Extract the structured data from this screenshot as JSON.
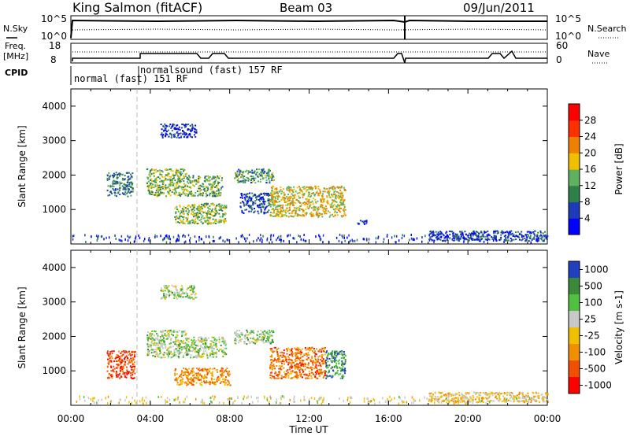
{
  "header": {
    "title": "King Salmon (fitACF)",
    "beam": "Beam 03",
    "date": "09/Jun/2011"
  },
  "panels": {
    "noise": {
      "left_label": "N.Sky",
      "right_label": "N.Search",
      "left_ticks": [
        "10^5",
        "10^0"
      ],
      "right_ticks": [
        "10^5",
        "10^0"
      ]
    },
    "freq": {
      "left_label_1": "Freq.",
      "left_label_2": "[MHz]",
      "right_label": "Nave",
      "left_ticks": [
        "18",
        "8"
      ],
      "right_ticks": [
        "60",
        "0"
      ]
    },
    "cpid": {
      "label": "CPID",
      "segments": [
        {
          "text": "normal (fast) 151 RF"
        },
        {
          "text": "normalsound (fast) 157 RF"
        }
      ]
    }
  },
  "chart_data": [
    {
      "type": "heatmap",
      "title": "",
      "ylabel": "Slant Range [km]",
      "xlabel": "",
      "x_ticks": [
        "00:00",
        "04:00",
        "08:00",
        "12:00",
        "16:00",
        "20:00",
        "00:00"
      ],
      "y_ticks": [
        "1000",
        "2000",
        "3000",
        "4000"
      ],
      "ylim": [
        0,
        4500
      ],
      "xlim_hours": [
        0,
        24
      ],
      "colorbar": {
        "label": "Power [dB]",
        "ticks": [
          "4",
          "8",
          "12",
          "16",
          "20",
          "24",
          "28"
        ],
        "colors": [
          "#0000ff",
          "#1d3bb8",
          "#2f7f4a",
          "#5fb05f",
          "#f0c000",
          "#f08000",
          "#ff3000",
          "#ff0000"
        ]
      },
      "regions": [
        {
          "t0": 1.8,
          "t1": 3.1,
          "r0": 1400,
          "r1": 2100,
          "level": 0.3
        },
        {
          "t0": 3.8,
          "t1": 5.8,
          "r0": 1400,
          "r1": 2200,
          "level": 0.45
        },
        {
          "t0": 4.5,
          "t1": 6.3,
          "r0": 3100,
          "r1": 3500,
          "level": 0.15
        },
        {
          "t0": 5.8,
          "t1": 7.6,
          "r0": 1400,
          "r1": 2000,
          "level": 0.4
        },
        {
          "t0": 5.2,
          "t1": 7.8,
          "r0": 600,
          "r1": 1200,
          "level": 0.45
        },
        {
          "t0": 8.2,
          "t1": 10.2,
          "r0": 1800,
          "r1": 2200,
          "level": 0.35
        },
        {
          "t0": 8.5,
          "t1": 10.0,
          "r0": 900,
          "r1": 1500,
          "level": 0.2
        },
        {
          "t0": 10.0,
          "t1": 13.8,
          "r0": 800,
          "r1": 1700,
          "level": 0.55
        },
        {
          "t0": 14.3,
          "t1": 14.9,
          "r0": 550,
          "r1": 700,
          "level": 0.2
        },
        {
          "t0": 18.0,
          "t1": 24.0,
          "r0": 100,
          "r1": 400,
          "level": 0.2
        }
      ]
    },
    {
      "type": "heatmap",
      "title": "",
      "ylabel": "Slant Range [km]",
      "xlabel": "Time UT",
      "x_ticks": [
        "00:00",
        "04:00",
        "08:00",
        "12:00",
        "16:00",
        "20:00",
        "00:00"
      ],
      "y_ticks": [
        "1000",
        "2000",
        "3000",
        "4000"
      ],
      "ylim": [
        0,
        4500
      ],
      "xlim_hours": [
        0,
        24
      ],
      "colorbar": {
        "label": "Velocity [m s-1]",
        "ticks": [
          "1000",
          "500",
          "100",
          "25",
          "-25",
          "-100",
          "-500",
          "-1000"
        ],
        "colors": [
          "#2040c0",
          "#3a8a3a",
          "#50c040",
          "#c8c8c8",
          "#f0c000",
          "#f09000",
          "#f05000",
          "#ff0000"
        ]
      },
      "regions": [
        {
          "t0": 1.8,
          "t1": 3.2,
          "r0": 800,
          "r1": 1600,
          "level": 0.85
        },
        {
          "t0": 3.8,
          "t1": 5.8,
          "r0": 1400,
          "r1": 2200,
          "level": 0.38
        },
        {
          "t0": 4.5,
          "t1": 6.3,
          "r0": 3100,
          "r1": 3500,
          "level": 0.38
        },
        {
          "t0": 5.8,
          "t1": 7.8,
          "r0": 1400,
          "r1": 2000,
          "level": 0.38
        },
        {
          "t0": 5.2,
          "t1": 8.0,
          "r0": 600,
          "r1": 1100,
          "level": 0.7
        },
        {
          "t0": 8.2,
          "t1": 10.2,
          "r0": 1800,
          "r1": 2200,
          "level": 0.38
        },
        {
          "t0": 10.0,
          "t1": 12.8,
          "r0": 800,
          "r1": 1700,
          "level": 0.75
        },
        {
          "t0": 12.8,
          "t1": 13.8,
          "r0": 800,
          "r1": 1600,
          "level": 0.2
        },
        {
          "t0": 18.0,
          "t1": 24.0,
          "r0": 100,
          "r1": 400,
          "level": 0.55
        }
      ]
    }
  ]
}
